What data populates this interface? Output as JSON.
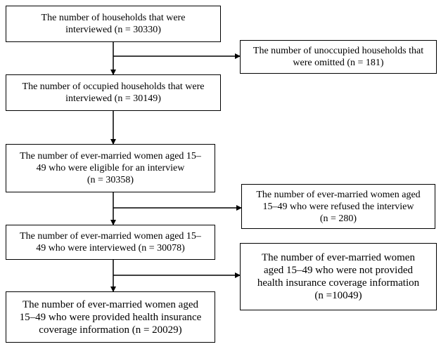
{
  "flow": {
    "box1": {
      "lines": [
        "The number of households that were",
        "interviewed (n = 30330)"
      ]
    },
    "excl1": {
      "lines": [
        "The number of unoccupied households that",
        "were omitted (n = 181)"
      ]
    },
    "box2": {
      "lines": [
        "The number of occupied households that were",
        "interviewed (n = 30149)"
      ]
    },
    "box3": {
      "lines": [
        "The number of ever-married women aged 15–",
        "49 who were eligible for an interview",
        "(n = 30358)"
      ]
    },
    "excl2": {
      "lines": [
        "The number of ever-married women aged",
        "15–49 who were refused the interview",
        "(n = 280)"
      ]
    },
    "box4": {
      "lines": [
        "The number of ever-married women aged 15–",
        "49 who were interviewed (n = 30078)"
      ]
    },
    "excl3": {
      "lines": [
        "The number of ever-married women",
        "aged 15–49 who were not provided",
        "health insurance coverage information",
        "(n =10049)"
      ]
    },
    "box5": {
      "lines": [
        "The number of ever-married women aged",
        "15–49 who were provided health insurance",
        "coverage information (n = 20029)"
      ]
    }
  }
}
